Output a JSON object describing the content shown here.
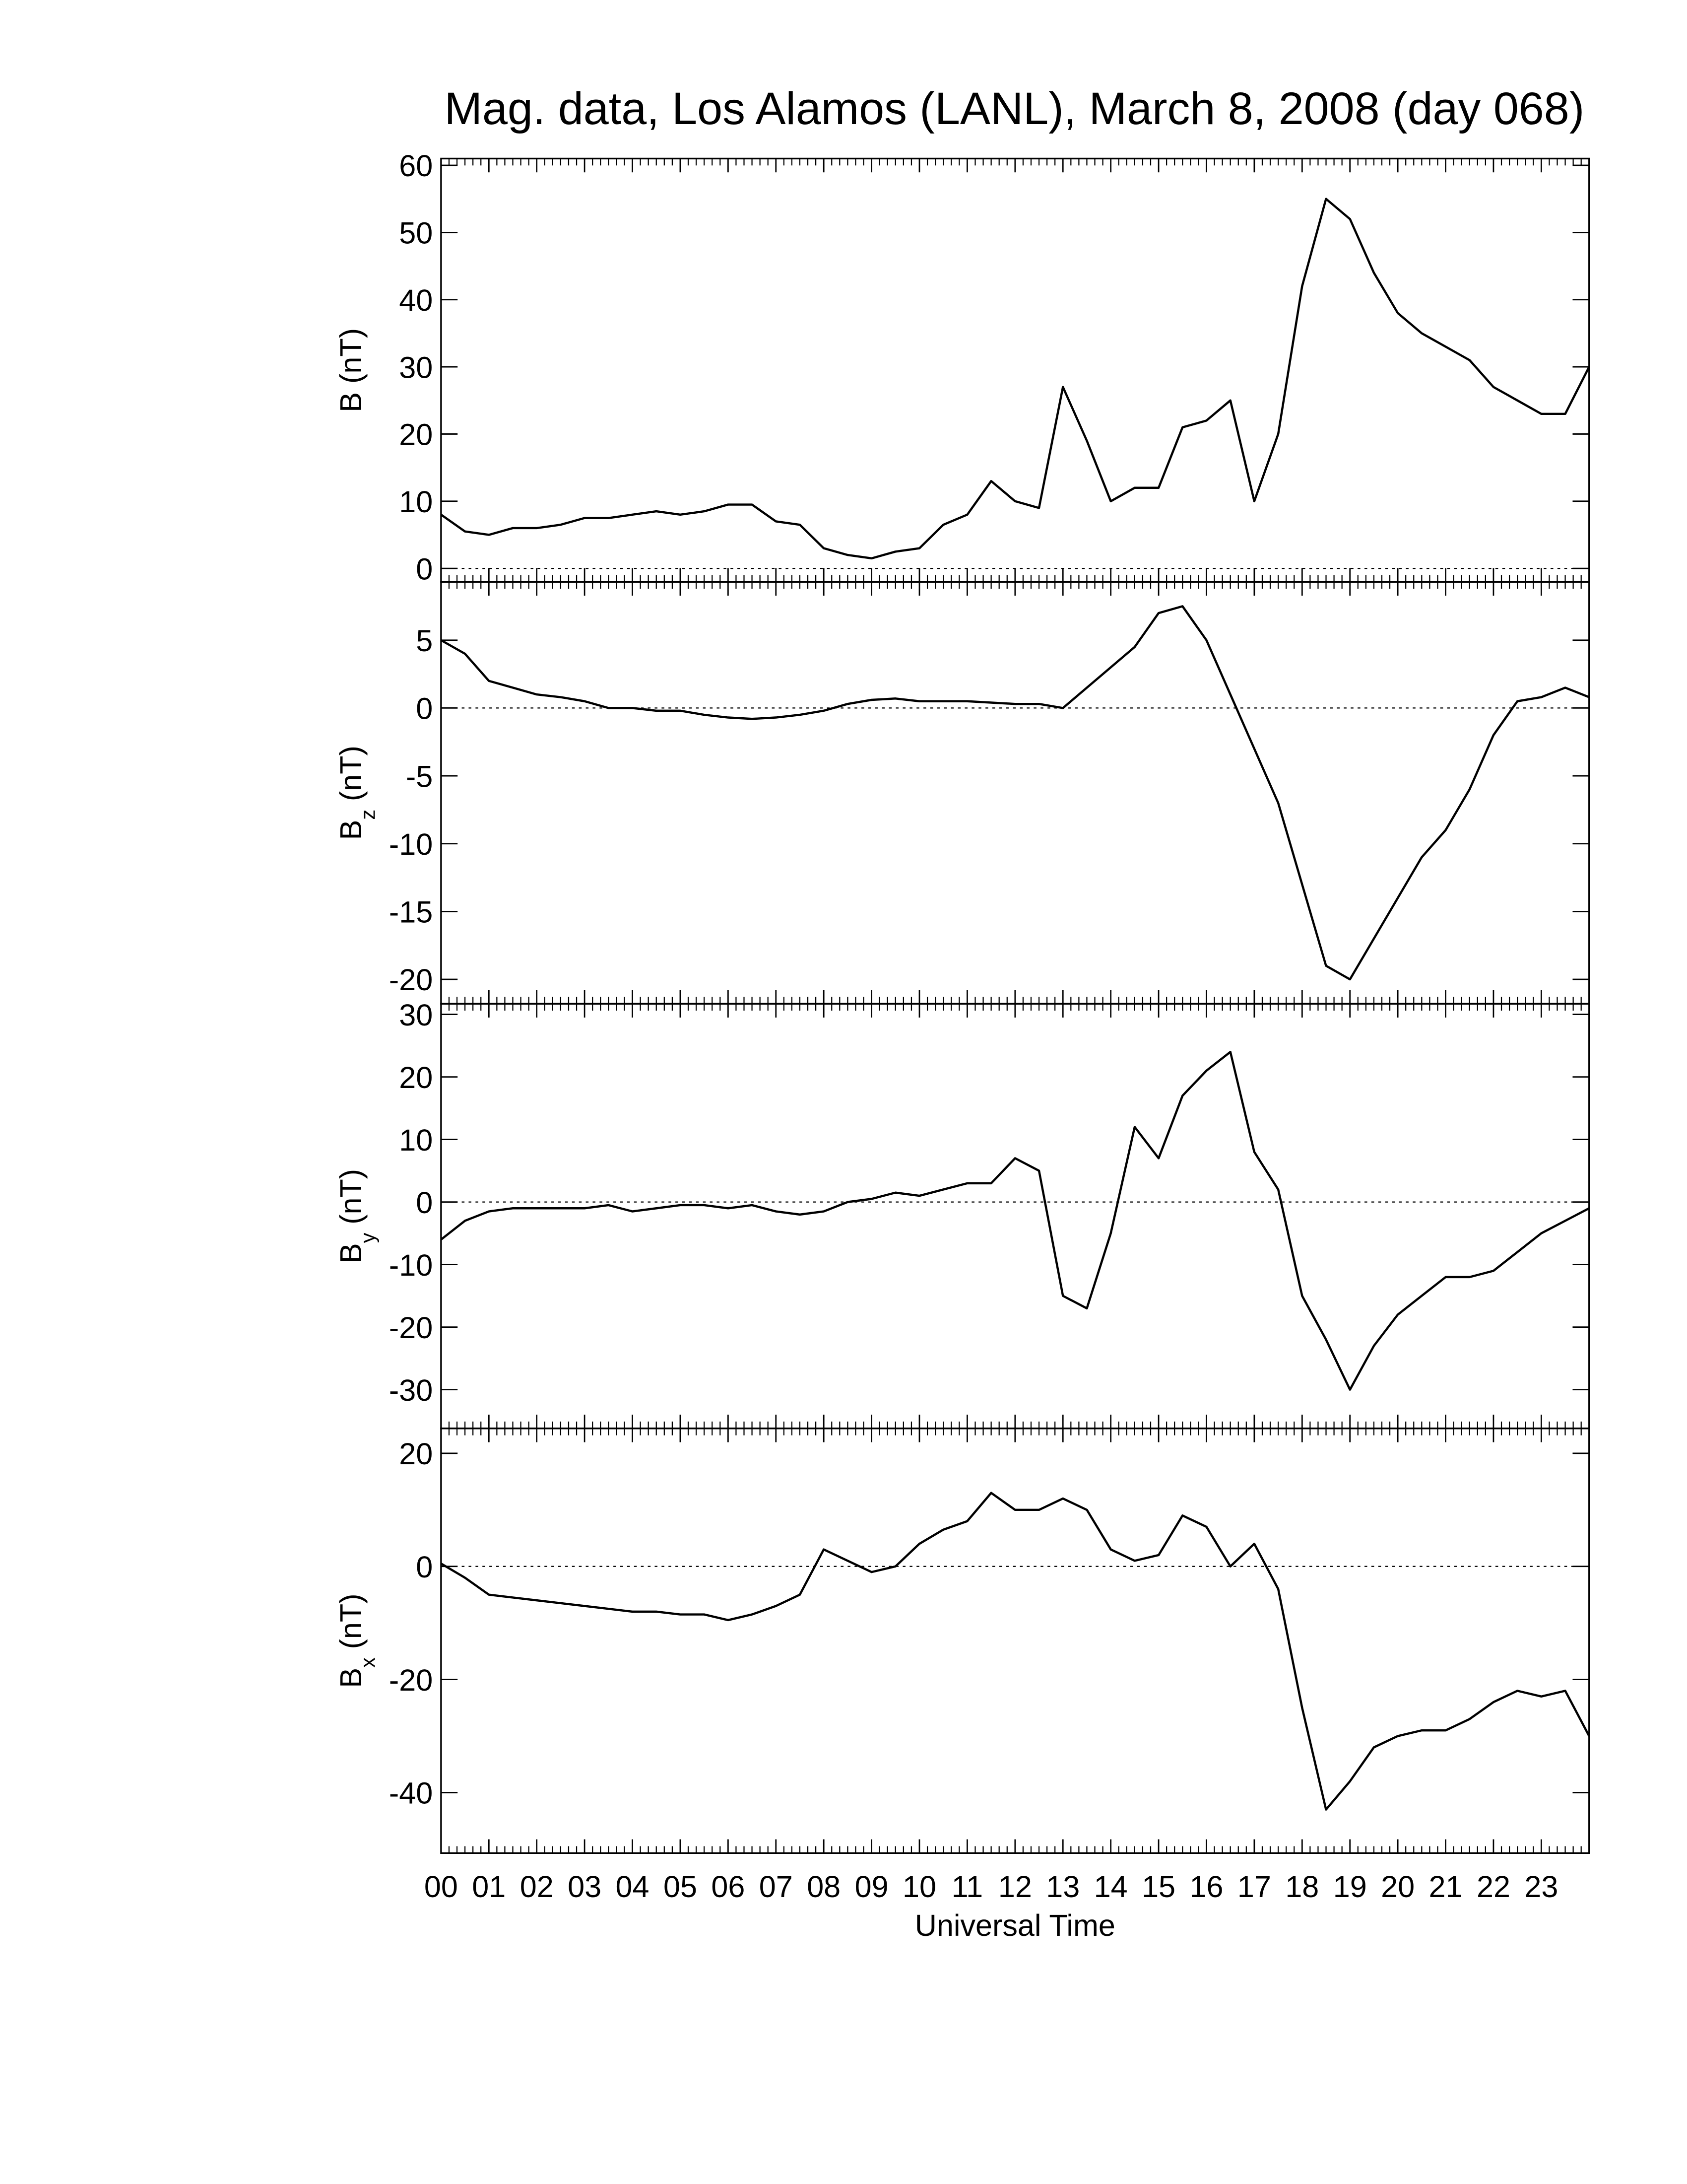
{
  "chart_data": [
    {
      "type": "line",
      "title": "Mag. data, Los Alamos (LANL), March 8, 2008 (day 068)",
      "ylabel": "B (nT)",
      "color": "#000000",
      "hline": 0,
      "xlim": [
        0,
        24
      ],
      "ylim": [
        -2,
        61
      ],
      "yticks": [
        0,
        10,
        20,
        30,
        40,
        50,
        60
      ],
      "x": [
        0,
        0.5,
        1,
        1.5,
        2,
        2.5,
        3,
        3.5,
        4,
        4.5,
        5,
        5.5,
        6,
        6.5,
        7,
        7.5,
        8,
        8.5,
        9,
        9.5,
        10,
        10.5,
        11,
        11.5,
        12,
        12.5,
        13,
        13.5,
        14,
        14.5,
        15,
        15.5,
        16,
        16.5,
        17,
        17.5,
        18,
        18.5,
        19,
        19.5,
        20,
        20.5,
        21,
        21.5,
        22,
        22.5,
        23,
        23.5,
        24
      ],
      "values": [
        8,
        5.5,
        5,
        6,
        6,
        6.5,
        7.5,
        7.5,
        8,
        8.5,
        8,
        8.5,
        9.5,
        9.5,
        7,
        6.5,
        3,
        2,
        1.5,
        2.5,
        3,
        6.5,
        8,
        13,
        10,
        9,
        27,
        19,
        10,
        12,
        12,
        21,
        22,
        25,
        10,
        20,
        42,
        55,
        52,
        44,
        38,
        35,
        33,
        31,
        27,
        25,
        23,
        23,
        30
      ]
    },
    {
      "type": "line",
      "ylabel": {
        "base": "B",
        "sub": "z",
        "unit": "(nT)"
      },
      "color": "#000000",
      "hline": 0,
      "xlim": [
        0,
        24
      ],
      "ylim": [
        -21.8,
        9.3
      ],
      "yticks": [
        -20,
        -15,
        -10,
        -5,
        0,
        5
      ],
      "x": [
        0,
        0.5,
        1,
        1.5,
        2,
        2.5,
        3,
        3.5,
        4,
        4.5,
        5,
        5.5,
        6,
        6.5,
        7,
        7.5,
        8,
        8.5,
        9,
        9.5,
        10,
        10.5,
        11,
        11.5,
        12,
        12.5,
        13,
        13.5,
        14,
        14.5,
        15,
        15.5,
        16,
        16.5,
        17,
        17.5,
        18,
        18.5,
        19,
        19.5,
        20,
        20.5,
        21,
        21.5,
        22,
        22.5,
        23,
        23.5,
        24
      ],
      "values": [
        5,
        4,
        2,
        1.5,
        1,
        0.8,
        0.5,
        0,
        0,
        -0.2,
        -0.2,
        -0.5,
        -0.7,
        -0.8,
        -0.7,
        -0.5,
        -0.2,
        0.3,
        0.6,
        0.7,
        0.5,
        0.5,
        0.5,
        0.4,
        0.3,
        0.3,
        0,
        1.5,
        3,
        4.5,
        7,
        7.5,
        5,
        1,
        -3,
        -7,
        -13,
        -19,
        -20,
        -17,
        -14,
        -11,
        -9,
        -6,
        -2,
        0.5,
        0.8,
        1.5,
        0.8
      ]
    },
    {
      "type": "line",
      "ylabel": {
        "base": "B",
        "sub": "y",
        "unit": "(nT)"
      },
      "color": "#000000",
      "hline": 0,
      "xlim": [
        0,
        24
      ],
      "ylim": [
        -36.2,
        31.7
      ],
      "yticks": [
        -30,
        -20,
        -10,
        0,
        10,
        20,
        30
      ],
      "x": [
        0,
        0.5,
        1,
        1.5,
        2,
        2.5,
        3,
        3.5,
        4,
        4.5,
        5,
        5.5,
        6,
        6.5,
        7,
        7.5,
        8,
        8.5,
        9,
        9.5,
        10,
        10.5,
        11,
        11.5,
        12,
        12.5,
        13,
        13.5,
        14,
        14.5,
        15,
        15.5,
        16,
        16.5,
        17,
        17.5,
        18,
        18.5,
        19,
        19.5,
        20,
        20.5,
        21,
        21.5,
        22,
        22.5,
        23,
        23.5,
        24
      ],
      "values": [
        -6,
        -3,
        -1.5,
        -1,
        -1,
        -1,
        -1,
        -0.5,
        -1.5,
        -1,
        -0.5,
        -0.5,
        -1,
        -0.5,
        -1.5,
        -2,
        -1.5,
        0,
        0.5,
        1.5,
        1,
        2,
        3,
        3,
        7,
        5,
        -15,
        -17,
        -5,
        12,
        7,
        17,
        21,
        24,
        8,
        2,
        -15,
        -22,
        -30,
        -23,
        -18,
        -15,
        -12,
        -12,
        -11,
        -8,
        -5,
        -3,
        -1
      ]
    },
    {
      "type": "line",
      "ylabel": {
        "base": "B",
        "sub": "x",
        "unit": "(nT)"
      },
      "xlabel": "Universal Time",
      "color": "#000000",
      "hline": 0,
      "xlim": [
        0,
        24
      ],
      "ylim": [
        -50.7,
        24.4
      ],
      "yticks": [
        -40,
        -20,
        0,
        20
      ],
      "xminor_per_major": 6,
      "xticks": [
        {
          "value": 0,
          "label": "00"
        },
        {
          "value": 1,
          "label": "01"
        },
        {
          "value": 2,
          "label": "02"
        },
        {
          "value": 3,
          "label": "03"
        },
        {
          "value": 4,
          "label": "04"
        },
        {
          "value": 5,
          "label": "05"
        },
        {
          "value": 6,
          "label": "06"
        },
        {
          "value": 7,
          "label": "07"
        },
        {
          "value": 8,
          "label": "08"
        },
        {
          "value": 9,
          "label": "09"
        },
        10,
        11,
        12,
        13,
        14,
        15,
        16,
        17,
        18,
        19,
        20,
        21,
        22,
        23
      ],
      "x": [
        0,
        0.5,
        1,
        1.5,
        2,
        2.5,
        3,
        3.5,
        4,
        4.5,
        5,
        5.5,
        6,
        6.5,
        7,
        7.5,
        8,
        8.5,
        9,
        9.5,
        10,
        10.5,
        11,
        11.5,
        12,
        12.5,
        13,
        13.5,
        14,
        14.5,
        15,
        15.5,
        16,
        16.5,
        17,
        17.5,
        18,
        18.5,
        19,
        19.5,
        20,
        20.5,
        21,
        21.5,
        22,
        22.5,
        23,
        23.5,
        24
      ],
      "values": [
        0.5,
        -2,
        -5,
        -5.5,
        -6,
        -6.5,
        -7,
        -7.5,
        -8,
        -8,
        -8.5,
        -8.5,
        -9.5,
        -8.5,
        -7,
        -5,
        3,
        1,
        -1,
        0,
        4,
        6.5,
        8,
        13,
        10,
        10,
        12,
        10,
        3,
        1,
        2,
        9,
        7,
        0,
        4,
        -4,
        -25,
        -43,
        -38,
        -32,
        -30,
        -29,
        -29,
        -27,
        -24,
        -22,
        -23,
        -22,
        -30
      ]
    }
  ]
}
